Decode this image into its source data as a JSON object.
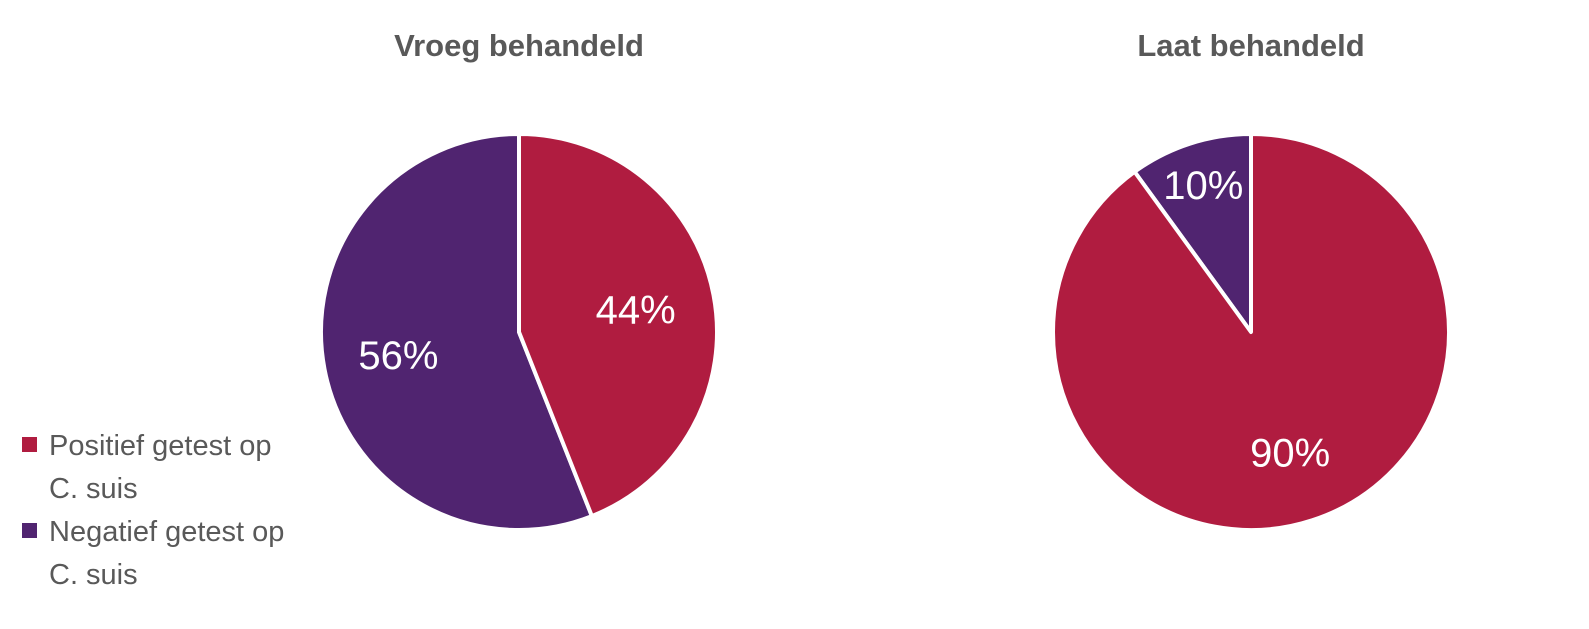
{
  "colors": {
    "positive": "#b01c40",
    "negative": "#502470"
  },
  "chart_data": [
    {
      "type": "pie",
      "title": "Vroeg behandeld",
      "slices": [
        {
          "category": "Positief getest op C. suis",
          "value": 44,
          "label": "44%",
          "color": "#b01c40"
        },
        {
          "category": "Negatief getest op C. suis",
          "value": 56,
          "label": "56%",
          "color": "#502470"
        }
      ]
    },
    {
      "type": "pie",
      "title": "Laat behandeld",
      "slices": [
        {
          "category": "Positief getest op C. suis",
          "value": 90,
          "label": "90%",
          "color": "#b01c40"
        },
        {
          "category": "Negatief getest op C. suis",
          "value": 10,
          "label": "10%",
          "color": "#502470"
        }
      ]
    }
  ],
  "legend": {
    "placement": "bottom-left",
    "items": [
      {
        "lines": [
          "Positief getest op",
          "C. suis"
        ],
        "color": "#b01c40"
      },
      {
        "lines": [
          "Negatief getest op",
          "C. suis"
        ],
        "color": "#502470"
      }
    ]
  }
}
